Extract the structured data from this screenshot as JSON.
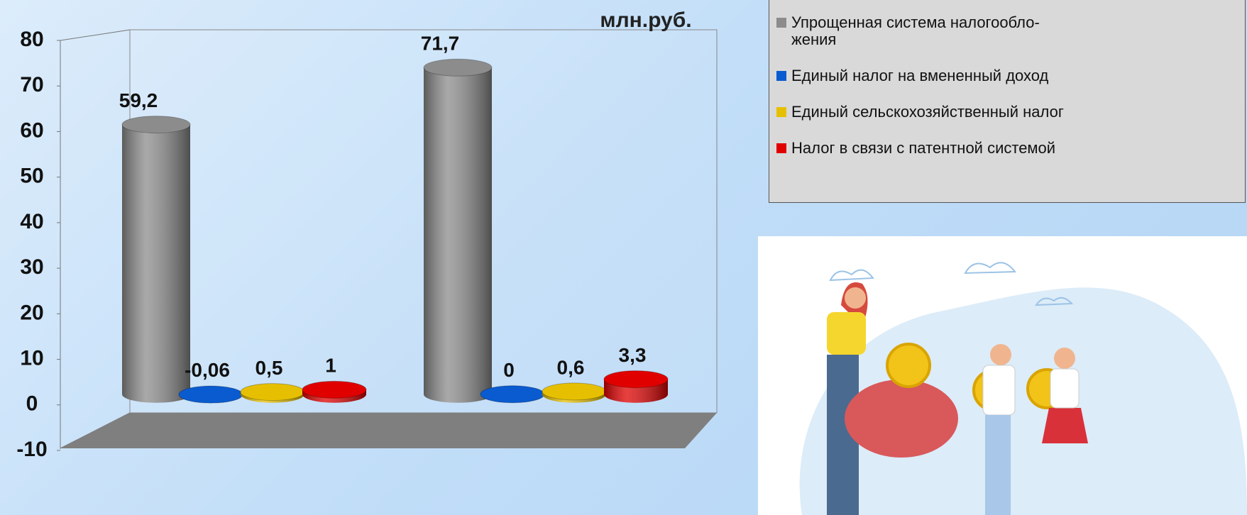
{
  "chart_data": {
    "type": "bar3d",
    "annotation": "млн.руб.",
    "categories": [
      null,
      null
    ],
    "series": [
      {
        "name": "Упрощенная система налогообло-\nжения",
        "color": "#8c8c8c",
        "values": [
          59.2,
          71.7
        ],
        "value_labels": [
          "59,2",
          "71,7"
        ]
      },
      {
        "name": "Единый налог на вмененный доход",
        "color": "#0a5bd0",
        "values": [
          -0.06,
          0
        ],
        "value_labels": [
          "-0,06",
          "0"
        ]
      },
      {
        "name": "Единый сельскохозяйственный налог",
        "color": "#e6c000",
        "values": [
          0.5,
          0.6
        ],
        "value_labels": [
          "0,5",
          "0,6"
        ]
      },
      {
        "name": "Налог в связи с патентной системой",
        "color": "#e00000",
        "values": [
          1,
          3.3
        ],
        "value_labels": [
          "1",
          "3,3"
        ]
      }
    ],
    "ylim": [
      -10,
      80
    ],
    "yticks": [
      -10,
      0,
      10,
      20,
      30,
      40,
      50,
      60,
      70,
      80
    ],
    "grid": false,
    "legend": "top-right"
  }
}
